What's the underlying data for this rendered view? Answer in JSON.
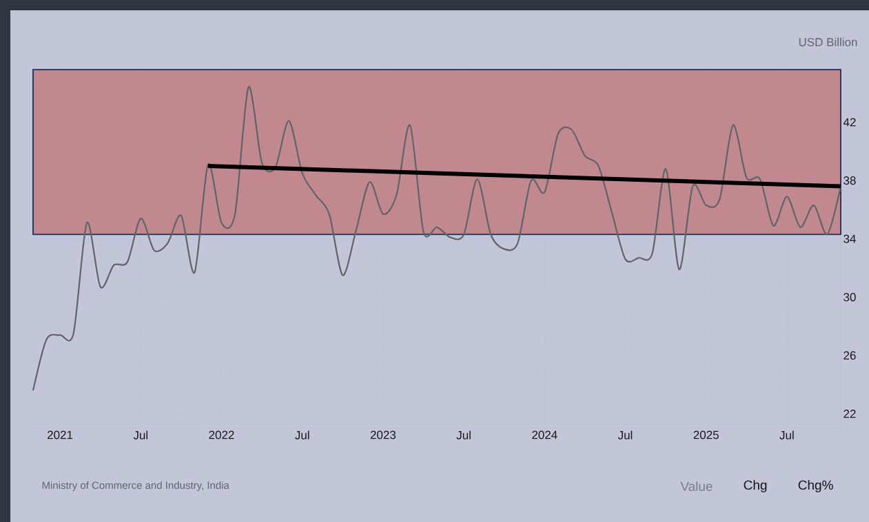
{
  "chart_data": {
    "type": "line",
    "ylabel": "USD Billion",
    "annotations": [
      "Ministry of Commerce and Industry, India",
      "Value",
      "Chg",
      "Chg%"
    ],
    "series": [
      {
        "color": "#606368",
        "x": [
          "2020-11",
          "2020-12",
          "2021-01",
          "2021-02",
          "2021-03",
          "2021-04",
          "2021-05",
          "2021-06",
          "2021-07",
          "2021-08",
          "2021-09",
          "2021-10",
          "2021-11",
          "2021-12",
          "2022-01",
          "2022-02",
          "2022-03",
          "2022-04",
          "2022-05",
          "2022-06",
          "2022-07",
          "2022-08",
          "2022-09",
          "2022-10",
          "2022-11",
          "2022-12",
          "2023-01",
          "2023-02",
          "2023-03",
          "2023-04",
          "2023-05",
          "2023-06",
          "2023-07",
          "2023-08",
          "2023-09",
          "2023-10",
          "2023-11",
          "2023-12",
          "2024-01",
          "2024-02",
          "2024-03",
          "2024-04",
          "2024-05",
          "2024-06",
          "2024-07",
          "2024-08",
          "2024-09",
          "2024-10",
          "2024-11",
          "2024-12",
          "2025-01",
          "2025-02",
          "2025-03",
          "2025-04",
          "2025-05",
          "2025-06",
          "2025-07",
          "2025-08",
          "2025-09",
          "2025-10",
          "2025-11"
        ],
        "values": [
          23.6,
          27.1,
          27.4,
          27.5,
          35.1,
          30.7,
          32.2,
          32.4,
          35.4,
          33.2,
          33.7,
          35.6,
          31.7,
          39.1,
          35.1,
          35.7,
          44.4,
          39.2,
          38.9,
          42.1,
          38.5,
          37.0,
          35.7,
          31.5,
          34.6,
          37.9,
          35.7,
          37.0,
          41.8,
          34.5,
          34.8,
          34.1,
          34.3,
          38.1,
          34.3,
          33.3,
          33.7,
          38.0,
          37.2,
          41.2,
          41.5,
          39.7,
          39.0,
          35.8,
          32.6,
          32.7,
          33.0,
          38.8,
          31.9,
          37.6,
          36.3,
          36.7,
          41.8,
          38.2,
          38.1,
          34.9,
          36.9,
          34.8,
          36.3,
          34.3,
          37.6
        ]
      },
      {
        "type": "line",
        "color": "#000000",
        "x": [
          "2021-12",
          "2025-11"
        ],
        "values": [
          39.0,
          37.6
        ]
      }
    ],
    "xlim": [
      "2020-11",
      "2025-11"
    ],
    "xticks": [
      {
        "value": "2021-01",
        "label": "2021"
      },
      {
        "value": "2021-07",
        "label": "Jul"
      },
      {
        "value": "2022-01",
        "label": "2022"
      },
      {
        "value": "2022-07",
        "label": "Jul"
      },
      {
        "value": "2023-01",
        "label": "2023"
      },
      {
        "value": "2023-07",
        "label": "Jul"
      },
      {
        "value": "2024-01",
        "label": "2024"
      },
      {
        "value": "2024-07",
        "label": "Jul"
      },
      {
        "value": "2025-01",
        "label": "2025"
      },
      {
        "value": "2025-07",
        "label": "Jul"
      }
    ],
    "ylim": [
      21,
      45.8
    ],
    "yticks": [
      22,
      26,
      30,
      34,
      38,
      42
    ],
    "bands": [
      {
        "axis": "y",
        "from": 34.3,
        "to": 45.6,
        "color": "#c1898f"
      }
    ],
    "grid": true
  }
}
